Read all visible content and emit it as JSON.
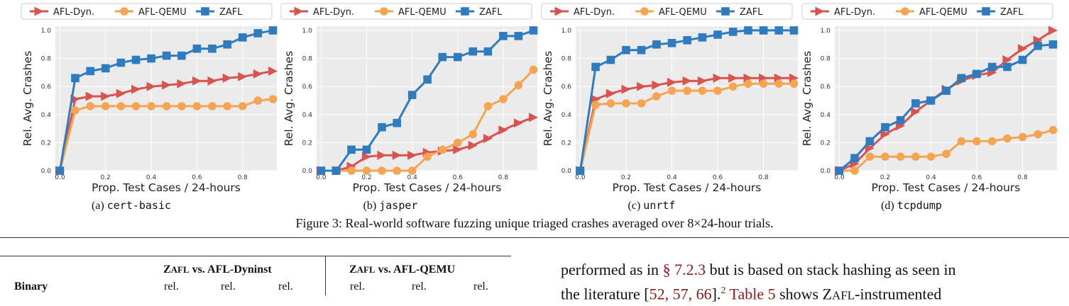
{
  "legend": {
    "afl_dyn": "AFL-Dyn.",
    "afl_qemu": "AFL-QEMU",
    "zafl": "ZAFL"
  },
  "colors": {
    "afl_dyn": "#d9534f",
    "afl_qemu": "#f5a552",
    "zafl": "#2f7bbf",
    "plot_bg": "#ebebeb",
    "grid": "#ffffff"
  },
  "chart_data": [
    {
      "type": "line",
      "panel": "(a)",
      "binary": "cert-basic",
      "xlabel": "Prop. Test Cases / 24-hours",
      "ylabel": "Rel. Avg. Crashes",
      "xlim": [
        -0.02,
        0.95
      ],
      "ylim": [
        0.0,
        1.03
      ],
      "xticks": [
        "0.0",
        "0.2",
        "0.4",
        "0.6",
        "0.8"
      ],
      "yticks": [
        "0.0",
        "0.2",
        "0.4",
        "0.6",
        "0.8",
        "1.0"
      ],
      "x": [
        0.0,
        0.067,
        0.133,
        0.2,
        0.267,
        0.333,
        0.4,
        0.467,
        0.533,
        0.6,
        0.667,
        0.733,
        0.8,
        0.867,
        0.933
      ],
      "series": [
        {
          "name": "AFL-Dyn.",
          "marker": "triangle-right",
          "values": [
            0.0,
            0.51,
            0.53,
            0.53,
            0.55,
            0.58,
            0.6,
            0.61,
            0.62,
            0.64,
            0.64,
            0.66,
            0.67,
            0.69,
            0.71
          ]
        },
        {
          "name": "AFL-QEMU",
          "marker": "circle",
          "values": [
            0.0,
            0.43,
            0.46,
            0.46,
            0.46,
            0.46,
            0.46,
            0.46,
            0.46,
            0.46,
            0.46,
            0.46,
            0.46,
            0.5,
            0.51
          ]
        },
        {
          "name": "ZAFL",
          "marker": "square",
          "values": [
            0.0,
            0.66,
            0.71,
            0.73,
            0.77,
            0.79,
            0.8,
            0.82,
            0.82,
            0.87,
            0.87,
            0.9,
            0.95,
            0.98,
            1.0
          ]
        }
      ]
    },
    {
      "type": "line",
      "panel": "(b)",
      "binary": "jasper",
      "xlabel": "Prop. Test Cases / 24-hours",
      "ylabel": "Rel. Avg. Crashes",
      "xlim": [
        -0.02,
        0.95
      ],
      "ylim": [
        0.0,
        1.03
      ],
      "xticks": [
        "0.0",
        "0.2",
        "0.4",
        "0.6",
        "0.8"
      ],
      "yticks": [
        "0.0",
        "0.2",
        "0.4",
        "0.6",
        "0.8",
        "1.0"
      ],
      "x": [
        0.0,
        0.067,
        0.133,
        0.2,
        0.267,
        0.333,
        0.4,
        0.467,
        0.533,
        0.6,
        0.667,
        0.733,
        0.8,
        0.867,
        0.933
      ],
      "series": [
        {
          "name": "AFL-Dyn.",
          "marker": "triangle-right",
          "values": [
            0.0,
            0.0,
            0.03,
            0.1,
            0.11,
            0.11,
            0.11,
            0.13,
            0.14,
            0.15,
            0.18,
            0.23,
            0.29,
            0.34,
            0.38
          ]
        },
        {
          "name": "AFL-QEMU",
          "marker": "circle",
          "values": [
            0.0,
            0.0,
            0.0,
            0.0,
            0.0,
            0.0,
            0.0,
            0.1,
            0.15,
            0.2,
            0.26,
            0.46,
            0.51,
            0.61,
            0.72
          ]
        },
        {
          "name": "ZAFL",
          "marker": "square",
          "values": [
            0.0,
            0.0,
            0.15,
            0.15,
            0.31,
            0.34,
            0.54,
            0.65,
            0.81,
            0.81,
            0.85,
            0.85,
            0.96,
            0.96,
            1.0
          ]
        }
      ]
    },
    {
      "type": "line",
      "panel": "(c)",
      "binary": "unrtf",
      "xlabel": "Prop. Test Cases / 24-hours",
      "ylabel": "Rel. Avg. Crashes",
      "xlim": [
        -0.02,
        0.95
      ],
      "ylim": [
        0.0,
        1.03
      ],
      "xticks": [
        "0.0",
        "0.2",
        "0.4",
        "0.6",
        "0.8"
      ],
      "yticks": [
        "0.0",
        "0.2",
        "0.4",
        "0.6",
        "0.8",
        "1.0"
      ],
      "x": [
        0.0,
        0.067,
        0.133,
        0.2,
        0.267,
        0.333,
        0.4,
        0.467,
        0.533,
        0.6,
        0.667,
        0.733,
        0.8,
        0.867,
        0.933
      ],
      "series": [
        {
          "name": "AFL-Dyn.",
          "marker": "triangle-right",
          "values": [
            0.0,
            0.51,
            0.55,
            0.58,
            0.6,
            0.61,
            0.63,
            0.64,
            0.64,
            0.66,
            0.66,
            0.66,
            0.66,
            0.66,
            0.66
          ]
        },
        {
          "name": "AFL-QEMU",
          "marker": "circle",
          "values": [
            0.0,
            0.47,
            0.48,
            0.48,
            0.48,
            0.53,
            0.57,
            0.57,
            0.57,
            0.57,
            0.6,
            0.62,
            0.62,
            0.62,
            0.62
          ]
        },
        {
          "name": "ZAFL",
          "marker": "square",
          "values": [
            0.0,
            0.74,
            0.79,
            0.86,
            0.86,
            0.9,
            0.91,
            0.93,
            0.95,
            0.97,
            0.99,
            1.0,
            1.0,
            1.0,
            1.0
          ]
        }
      ]
    },
    {
      "type": "line",
      "panel": "(d)",
      "binary": "tcpdump",
      "xlabel": "Prop. Test Cases / 24-hours",
      "ylabel": "Rel. Avg. Crashes",
      "xlim": [
        -0.02,
        0.95
      ],
      "ylim": [
        0.0,
        1.03
      ],
      "xticks": [
        "0.0",
        "0.2",
        "0.4",
        "0.6",
        "0.8"
      ],
      "yticks": [
        "0.0",
        "0.2",
        "0.4",
        "0.6",
        "0.8",
        "1.0"
      ],
      "x": [
        0.0,
        0.067,
        0.133,
        0.2,
        0.267,
        0.333,
        0.4,
        0.467,
        0.533,
        0.6,
        0.667,
        0.733,
        0.8,
        0.867,
        0.933
      ],
      "series": [
        {
          "name": "AFL-Dyn.",
          "marker": "triangle-right",
          "values": [
            0.0,
            0.05,
            0.16,
            0.26,
            0.32,
            0.42,
            0.5,
            0.58,
            0.64,
            0.68,
            0.7,
            0.79,
            0.87,
            0.93,
            1.0
          ]
        },
        {
          "name": "AFL-QEMU",
          "marker": "circle",
          "values": [
            0.0,
            0.0,
            0.1,
            0.1,
            0.1,
            0.1,
            0.1,
            0.12,
            0.21,
            0.21,
            0.21,
            0.23,
            0.24,
            0.26,
            0.29
          ]
        },
        {
          "name": "ZAFL",
          "marker": "square",
          "values": [
            0.0,
            0.09,
            0.21,
            0.31,
            0.36,
            0.48,
            0.5,
            0.57,
            0.66,
            0.69,
            0.74,
            0.74,
            0.79,
            0.89,
            0.9
          ]
        }
      ]
    }
  ],
  "subcaptions": [
    {
      "label": "(a)",
      "binary": "cert-basic"
    },
    {
      "label": "(b)",
      "binary": "jasper"
    },
    {
      "label": "(c)",
      "binary": "unrtf"
    },
    {
      "label": "(d)",
      "binary": "tcpdump"
    }
  ],
  "figure_caption": "Figure 3: Real-world software fuzzing unique triaged crashes averaged over 8×24-hour trials.",
  "table": {
    "binary_header": "Binary",
    "group1": {
      "z": "Z",
      "afl": "AFL",
      "rest": " vs. AFL-Dyninst"
    },
    "group2": {
      "z": "Z",
      "afl": "AFL",
      "rest": " vs. AFL-QEMU"
    },
    "rel": "rel."
  },
  "body_text": {
    "line1_a": "performed as in ",
    "line1_link": "§ 7.2.3",
    "line1_b": " but is based on stack hashing as seen in",
    "line2_a": "the literature [",
    "line2_refs": "52, 57, 66",
    "line2_b": "].",
    "line2_fn": "2",
    "line2_table": "Table 5",
    "line2_c": " shows Z",
    "line2_afl": "AFL",
    "line2_d": "-instrumented"
  }
}
